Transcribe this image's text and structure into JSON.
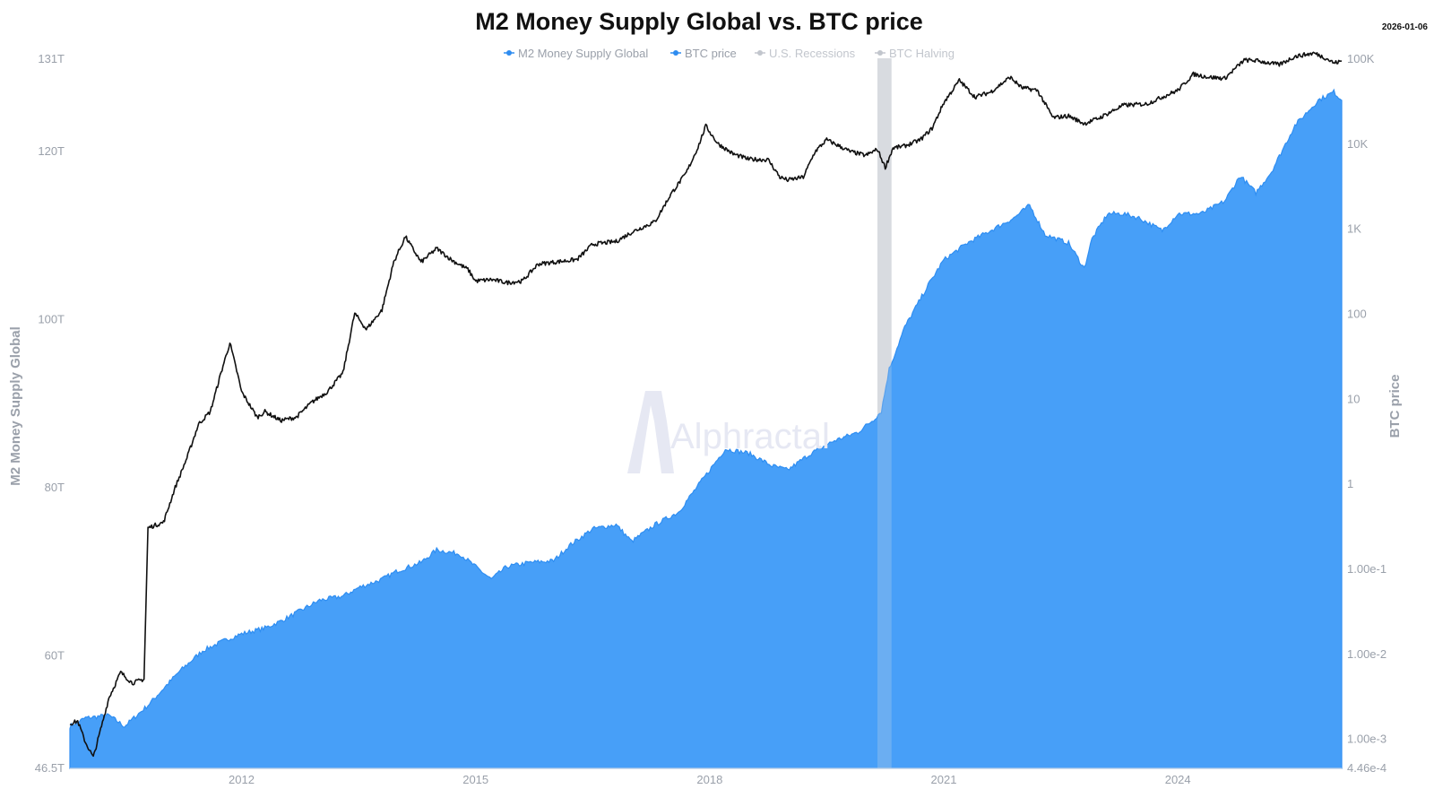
{
  "header": {
    "title": "M2 Money Supply Global vs. BTC price",
    "date": "2026-01-06"
  },
  "watermark": {
    "text": "Alphractal"
  },
  "colors": {
    "m2_fill": "#479ff8",
    "m2_line": "#2f8ef2",
    "btc_line": "#111111",
    "recession": "#d9dbe0",
    "axis_text": "#9aa0aa",
    "legend_active": "#2e8cf0",
    "legend_muted": "#c2c6cd"
  },
  "chart_data": {
    "type": "area",
    "title": "M2 Money Supply Global vs. BTC price",
    "legend_position": "top-center",
    "legend": [
      {
        "name": "M2 Money Supply Global",
        "active": true
      },
      {
        "name": "BTC price",
        "active": true
      },
      {
        "name": "U.S. Recessions",
        "active": false
      },
      {
        "name": "BTC Halving",
        "active": false
      }
    ],
    "x_axis": {
      "range": [
        2009.8,
        2026.1
      ],
      "ticks": [
        {
          "value": 2012,
          "label": "2012"
        },
        {
          "value": 2015,
          "label": "2015"
        },
        {
          "value": 2018,
          "label": "2018"
        },
        {
          "value": 2021,
          "label": "2021"
        },
        {
          "value": 2024,
          "label": "2024"
        }
      ]
    },
    "y_left": {
      "label": "M2 Money Supply Global",
      "range": [
        46.5,
        131
      ],
      "unit": "T",
      "ticks": [
        {
          "value": 131,
          "label": "131T"
        },
        {
          "value": 120,
          "label": "120T"
        },
        {
          "value": 100,
          "label": "100T"
        },
        {
          "value": 80,
          "label": "80T"
        },
        {
          "value": 60,
          "label": "60T"
        },
        {
          "value": 46.5,
          "label": "46.5T"
        }
      ]
    },
    "y_right": {
      "label": "BTC price",
      "scale": "log",
      "range": [
        0.000446,
        100000
      ],
      "ticks": [
        {
          "value": 100000,
          "label": "100K"
        },
        {
          "value": 10000,
          "label": "10K"
        },
        {
          "value": 1000,
          "label": "1K"
        },
        {
          "value": 100,
          "label": "100"
        },
        {
          "value": 10,
          "label": "10"
        },
        {
          "value": 1,
          "label": "1"
        },
        {
          "value": 0.1,
          "label": "1.00e-1"
        },
        {
          "value": 0.01,
          "label": "1.00e-2"
        },
        {
          "value": 0.001,
          "label": "1.00e-3"
        },
        {
          "value": 0.000446,
          "label": "4.46e-4"
        }
      ]
    },
    "recessions": [
      {
        "start": 2020.15,
        "end": 2020.33
      }
    ],
    "series": [
      {
        "name": "M2 Money Supply Global",
        "axis": "left",
        "style": "area",
        "points": [
          [
            2009.8,
            51.5
          ],
          [
            2010.0,
            52.5
          ],
          [
            2010.3,
            52.8
          ],
          [
            2010.5,
            51.5
          ],
          [
            2010.8,
            54.0
          ],
          [
            2011.0,
            56.0
          ],
          [
            2011.2,
            58.0
          ],
          [
            2011.5,
            60.5
          ],
          [
            2011.8,
            61.8
          ],
          [
            2012.0,
            62.5
          ],
          [
            2012.3,
            63.2
          ],
          [
            2012.5,
            64.0
          ],
          [
            2012.8,
            65.5
          ],
          [
            2013.0,
            66.5
          ],
          [
            2013.3,
            67.0
          ],
          [
            2013.5,
            68.0
          ],
          [
            2013.8,
            69.0
          ],
          [
            2014.0,
            70.0
          ],
          [
            2014.3,
            71.0
          ],
          [
            2014.5,
            72.5
          ],
          [
            2014.8,
            72.0
          ],
          [
            2015.0,
            70.5
          ],
          [
            2015.2,
            69.0
          ],
          [
            2015.4,
            70.5
          ],
          [
            2015.7,
            71.0
          ],
          [
            2016.0,
            71.2
          ],
          [
            2016.2,
            73.0
          ],
          [
            2016.5,
            75.0
          ],
          [
            2016.8,
            75.5
          ],
          [
            2017.0,
            73.5
          ],
          [
            2017.3,
            75.5
          ],
          [
            2017.6,
            77.0
          ],
          [
            2018.0,
            82.0
          ],
          [
            2018.2,
            84.5
          ],
          [
            2018.5,
            84.0
          ],
          [
            2018.8,
            82.5
          ],
          [
            2019.0,
            82.0
          ],
          [
            2019.3,
            84.0
          ],
          [
            2019.6,
            85.5
          ],
          [
            2019.9,
            86.5
          ],
          [
            2020.1,
            88.0
          ],
          [
            2020.2,
            89.0
          ],
          [
            2020.3,
            94.0
          ],
          [
            2020.5,
            99.0
          ],
          [
            2020.8,
            104.0
          ],
          [
            2021.0,
            107.0
          ],
          [
            2021.3,
            109.0
          ],
          [
            2021.6,
            110.5
          ],
          [
            2021.9,
            112.0
          ],
          [
            2022.1,
            113.5
          ],
          [
            2022.3,
            110.0
          ],
          [
            2022.6,
            109.0
          ],
          [
            2022.8,
            106.0
          ],
          [
            2022.9,
            109.5
          ],
          [
            2023.1,
            112.5
          ],
          [
            2023.3,
            112.5
          ],
          [
            2023.5,
            112.0
          ],
          [
            2023.8,
            110.5
          ],
          [
            2024.0,
            112.5
          ],
          [
            2024.3,
            112.5
          ],
          [
            2024.6,
            114.0
          ],
          [
            2024.8,
            117.0
          ],
          [
            2025.0,
            115.0
          ],
          [
            2025.2,
            117.5
          ],
          [
            2025.5,
            123.0
          ],
          [
            2025.8,
            126.0
          ],
          [
            2026.0,
            127.0
          ],
          [
            2026.1,
            126.0
          ]
        ]
      },
      {
        "name": "BTC price",
        "axis": "right",
        "style": "line",
        "points": [
          [
            2009.8,
            0.0015
          ],
          [
            2009.9,
            0.0016
          ],
          [
            2010.0,
            0.0009
          ],
          [
            2010.1,
            0.0006
          ],
          [
            2010.3,
            0.003
          ],
          [
            2010.45,
            0.006
          ],
          [
            2010.6,
            0.0045
          ],
          [
            2010.75,
            0.005
          ],
          [
            2010.8,
            0.3
          ],
          [
            2011.0,
            0.35
          ],
          [
            2011.15,
            0.9
          ],
          [
            2011.3,
            2.0
          ],
          [
            2011.45,
            5.0
          ],
          [
            2011.6,
            7.0
          ],
          [
            2011.75,
            22.0
          ],
          [
            2011.85,
            45.0
          ],
          [
            2011.95,
            19.0
          ],
          [
            2012.0,
            12.0
          ],
          [
            2012.2,
            6.0
          ],
          [
            2012.3,
            7.0
          ],
          [
            2012.5,
            5.5
          ],
          [
            2012.7,
            6.0
          ],
          [
            2012.9,
            9.0
          ],
          [
            2013.1,
            12.0
          ],
          [
            2013.3,
            20.0
          ],
          [
            2013.45,
            100.0
          ],
          [
            2013.6,
            65.0
          ],
          [
            2013.8,
            110.0
          ],
          [
            2013.95,
            400.0
          ],
          [
            2014.1,
            800.0
          ],
          [
            2014.3,
            400.0
          ],
          [
            2014.5,
            580.0
          ],
          [
            2014.7,
            420.0
          ],
          [
            2014.9,
            330.0
          ],
          [
            2015.0,
            240.0
          ],
          [
            2015.2,
            250.0
          ],
          [
            2015.4,
            230.0
          ],
          [
            2015.6,
            240.0
          ],
          [
            2015.8,
            380.0
          ],
          [
            2016.0,
            400.0
          ],
          [
            2016.3,
            430.0
          ],
          [
            2016.5,
            650.0
          ],
          [
            2016.8,
            700.0
          ],
          [
            2017.0,
            900.0
          ],
          [
            2017.3,
            1200.0
          ],
          [
            2017.5,
            2500.0
          ],
          [
            2017.7,
            4500.0
          ],
          [
            2017.85,
            9000.0
          ],
          [
            2017.95,
            16000.0
          ],
          [
            2018.1,
            10000.0
          ],
          [
            2018.3,
            7500.0
          ],
          [
            2018.5,
            6500.0
          ],
          [
            2018.75,
            6400.0
          ],
          [
            2018.9,
            4000.0
          ],
          [
            2019.0,
            3700.0
          ],
          [
            2019.2,
            4000.0
          ],
          [
            2019.35,
            8000.0
          ],
          [
            2019.5,
            11000.0
          ],
          [
            2019.8,
            8000.0
          ],
          [
            2020.0,
            7200.0
          ],
          [
            2020.15,
            8500.0
          ],
          [
            2020.25,
            5200.0
          ],
          [
            2020.35,
            8800.0
          ],
          [
            2020.5,
            9300.0
          ],
          [
            2020.7,
            11000.0
          ],
          [
            2020.85,
            15000.0
          ],
          [
            2021.0,
            30000.0
          ],
          [
            2021.2,
            55000.0
          ],
          [
            2021.4,
            35000.0
          ],
          [
            2021.6,
            40000.0
          ],
          [
            2021.85,
            60000.0
          ],
          [
            2022.0,
            45000.0
          ],
          [
            2022.2,
            42000.0
          ],
          [
            2022.4,
            20000.0
          ],
          [
            2022.6,
            21000.0
          ],
          [
            2022.8,
            17000.0
          ],
          [
            2023.0,
            20000.0
          ],
          [
            2023.3,
            28000.0
          ],
          [
            2023.6,
            29000.0
          ],
          [
            2023.8,
            35000.0
          ],
          [
            2024.0,
            42000.0
          ],
          [
            2024.2,
            65000.0
          ],
          [
            2024.4,
            60000.0
          ],
          [
            2024.6,
            58000.0
          ],
          [
            2024.85,
            95000.0
          ],
          [
            2025.0,
            94000.0
          ],
          [
            2025.3,
            84000.0
          ],
          [
            2025.5,
            105000.0
          ],
          [
            2025.75,
            115000.0
          ],
          [
            2025.9,
            100000.0
          ],
          [
            2026.0,
            88000.0
          ],
          [
            2026.1,
            92000.0
          ]
        ]
      }
    ]
  }
}
